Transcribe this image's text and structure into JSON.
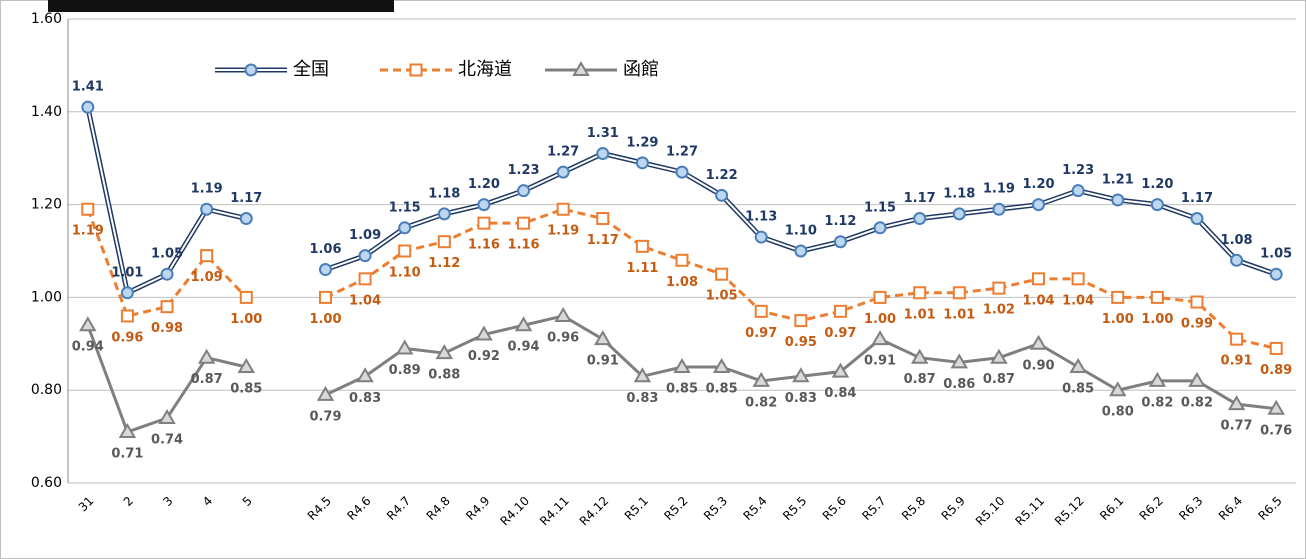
{
  "chart_data": {
    "type": "line",
    "categories": [
      "31",
      "2",
      "3",
      "4",
      "5",
      null,
      "R4.5",
      "R4.6",
      "R4.7",
      "R4.8",
      "R4.9",
      "R4.10",
      "R4.11",
      "R4.12",
      "R5.1",
      "R5.2",
      "R5.3",
      "R5.4",
      "R5.5",
      "R5.6",
      "R5.7",
      "R5.8",
      "R5.9",
      "R5.10",
      "R5.11",
      "R5.12",
      "R6.1",
      "R6.2",
      "R6.3",
      "R6.4",
      "R6.5"
    ],
    "series": [
      {
        "name": "全国",
        "color": "#1f3864",
        "marker": "circle",
        "values": [
          1.41,
          1.01,
          1.05,
          1.19,
          1.17,
          null,
          1.06,
          1.09,
          1.15,
          1.18,
          1.2,
          1.23,
          1.27,
          1.31,
          1.29,
          1.27,
          1.22,
          1.13,
          1.1,
          1.12,
          1.15,
          1.17,
          1.18,
          1.19,
          1.2,
          1.23,
          1.21,
          1.2,
          1.17,
          1.08,
          1.05
        ],
        "value_labels": [
          "1.41",
          "1.01",
          "1.05",
          "1.19",
          "1.17",
          null,
          "1.06",
          "1.09",
          "1.15",
          "1.18",
          "1.20",
          "1.23",
          "1.27",
          "1.31",
          "1.29",
          "1.27",
          "1.22",
          "1.13",
          "1.10",
          "1.12",
          "1.15",
          "1.17",
          "1.18",
          "1.19",
          "1.20",
          "1.23",
          "1.21",
          "1.20",
          "1.17",
          "1.08",
          "1.05"
        ]
      },
      {
        "name": "北海道",
        "color": "#ed7d31",
        "marker": "square",
        "values": [
          1.19,
          0.96,
          0.98,
          1.09,
          1.0,
          null,
          1.0,
          1.04,
          1.1,
          1.12,
          1.16,
          1.16,
          1.19,
          1.17,
          1.11,
          1.08,
          1.05,
          0.97,
          0.95,
          0.97,
          1.0,
          1.01,
          1.01,
          1.02,
          1.04,
          1.04,
          1.0,
          1.0,
          0.99,
          0.91,
          0.89
        ],
        "value_labels": [
          "1.19",
          "0.96",
          "0.98",
          "1.09",
          "1.00",
          null,
          "1.00",
          "1.04",
          "1.10",
          "1.12",
          "1.16",
          "1.16",
          "1.19",
          "1.17",
          "1.11",
          "1.08",
          "1.05",
          "0.97",
          "0.95",
          "0.97",
          "1.00",
          "1.01",
          "1.01",
          "1.02",
          "1.04",
          "1.04",
          "1.00",
          "1.00",
          "0.99",
          "0.91",
          "0.89"
        ]
      },
      {
        "name": "函館",
        "color": "#7f7f7f",
        "marker": "triangle",
        "values": [
          0.94,
          0.71,
          0.74,
          0.87,
          0.85,
          null,
          0.79,
          0.83,
          0.89,
          0.88,
          0.92,
          0.94,
          0.96,
          0.91,
          0.83,
          0.85,
          0.85,
          0.82,
          0.83,
          0.84,
          0.91,
          0.87,
          0.86,
          0.87,
          0.9,
          0.85,
          0.8,
          0.82,
          0.82,
          0.77,
          0.76
        ],
        "value_labels": [
          "0.94",
          "0.71",
          "0.74",
          "0.87",
          "0.85",
          null,
          "0.79",
          "0.83",
          "0.89",
          "0.88",
          "0.92",
          "0.94",
          "0.96",
          "0.91",
          "0.83",
          "0.85",
          "0.85",
          "0.82",
          "0.83",
          "0.84",
          "0.91",
          "0.87",
          "0.86",
          "0.87",
          "0.90",
          "0.85",
          "0.80",
          "0.82",
          "0.82",
          "0.77",
          "0.76"
        ]
      }
    ],
    "ylim": [
      0.6,
      1.6
    ],
    "yticks": [
      {
        "value": 0.6,
        "label": "0.60"
      },
      {
        "value": 0.8,
        "label": "0.80"
      },
      {
        "value": 1.0,
        "label": "1.00"
      },
      {
        "value": 1.2,
        "label": "1.20"
      },
      {
        "value": 1.4,
        "label": "1.40"
      },
      {
        "value": 1.6,
        "label": "1.60"
      }
    ],
    "grid": true,
    "legend": "top"
  }
}
